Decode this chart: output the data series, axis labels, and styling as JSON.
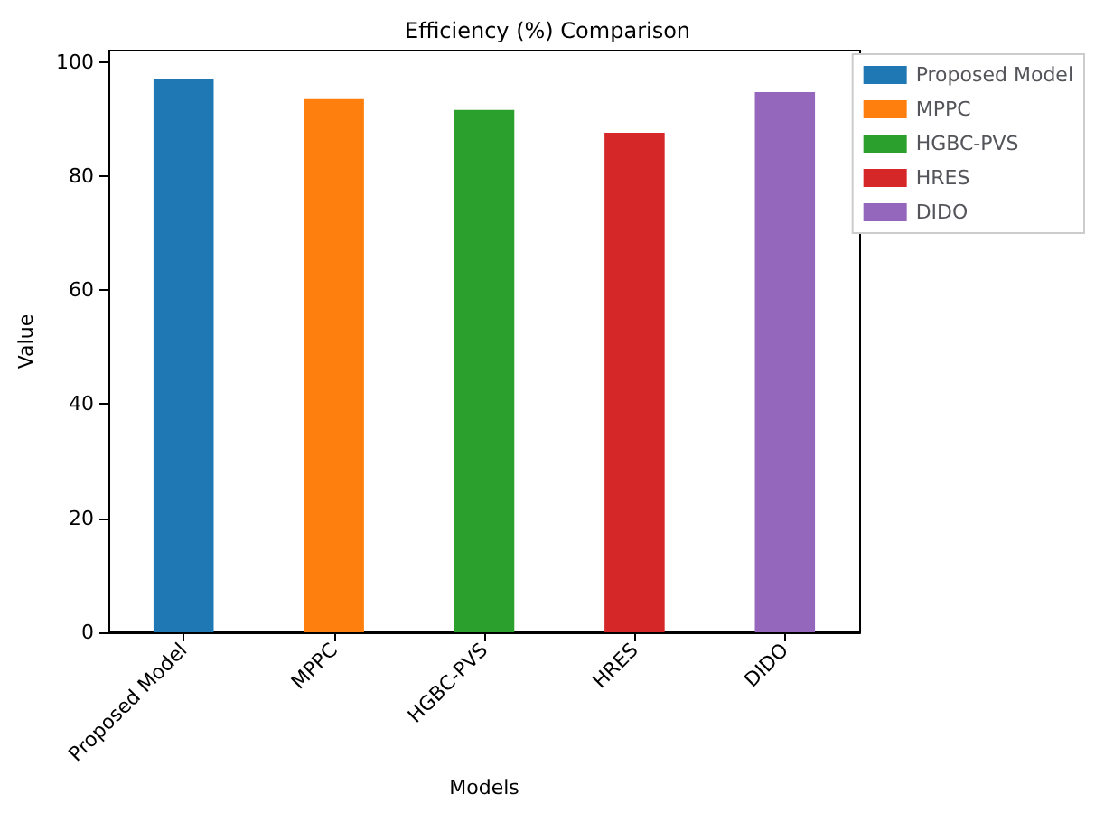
{
  "chart_data": {
    "type": "bar",
    "title": "Efficiency (%) Comparison",
    "xlabel": "Models",
    "ylabel": "Value",
    "categories": [
      "Proposed Model",
      "MPPC",
      "HGBC-PVS",
      "HRES",
      "DIDO"
    ],
    "series": [
      {
        "name": "Proposed Model",
        "color": "#1f77b4",
        "values": [
          97.0,
          null,
          null,
          null,
          null
        ]
      },
      {
        "name": "MPPC",
        "color": "#ff7f0e",
        "values": [
          null,
          93.5,
          null,
          null,
          null
        ]
      },
      {
        "name": "HGBC-PVS",
        "color": "#2ca02c",
        "values": [
          null,
          null,
          91.6,
          null,
          null
        ]
      },
      {
        "name": "HRES",
        "color": "#d62728",
        "values": [
          null,
          null,
          null,
          87.6,
          null
        ]
      },
      {
        "name": "DIDO",
        "color": "#9467bd",
        "values": [
          null,
          null,
          null,
          null,
          94.7
        ]
      }
    ],
    "ylim": [
      0,
      102
    ],
    "yticks": [
      0,
      20,
      40,
      60,
      80,
      100
    ],
    "grid": false,
    "legend": "top right"
  }
}
